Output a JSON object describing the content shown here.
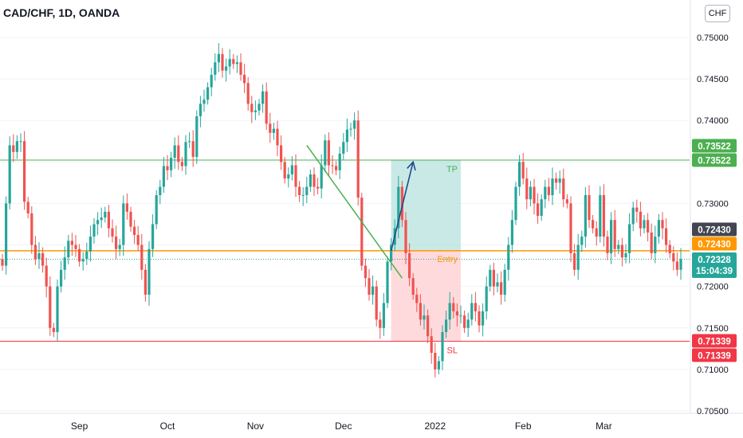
{
  "header": {
    "title": "CAD/CHF, 1D, OANDA",
    "currency": "CHF"
  },
  "colors": {
    "up": "#26a69a",
    "down": "#ef5350",
    "tp_line": "#4caf50",
    "sl_line": "#f23645",
    "entry_line": "#ff9800",
    "profit_zone": "#b2dfdb",
    "loss_zone": "#ffcdd2",
    "trend_line": "#4caf50",
    "arrow": "#1e4a8c",
    "last_price": "#26a69a",
    "dark_label": "#434651"
  },
  "chart_data": {
    "type": "candlestick",
    "symbol": "CAD/CHF",
    "timeframe": "1D",
    "source": "OANDA",
    "ylim": [
      0.705,
      0.752
    ],
    "y_ticks": [
      "0.75000",
      "0.74500",
      "0.74000",
      "0.73500",
      "0.73000",
      "0.72500",
      "0.72000",
      "0.71500",
      "0.71000",
      "0.70500"
    ],
    "x_ticks": [
      "Sep",
      "Oct",
      "Nov",
      "Dec",
      "2022",
      "Feb",
      "Mar"
    ],
    "levels": {
      "tp": {
        "label": "TP",
        "value": 0.73522,
        "price_text": "0.73522",
        "price_text2": "0.73522"
      },
      "sl": {
        "label": "SL",
        "value": 0.71339,
        "price_text": "0.71339",
        "price_text2": "0.71339"
      },
      "entry": {
        "label": "Entry",
        "value": 0.7243,
        "price_text": "0.72430"
      },
      "extra": {
        "value": 0.7243,
        "price_text": "0.72430"
      },
      "last": {
        "value": 0.72328,
        "price_text": "0.72328",
        "countdown": "15:04:39"
      }
    },
    "trend_line": {
      "start": {
        "day": 83,
        "price": 0.737
      },
      "end": {
        "day": 109,
        "price": 0.721
      }
    },
    "arrow": {
      "start": {
        "day": 106,
        "price": 0.7243
      },
      "end": {
        "day": 112,
        "price": 0.735
      }
    },
    "zones": {
      "start_day": 106,
      "end_day": 125
    },
    "closes": [
      0.7225,
      0.73,
      0.737,
      0.7362,
      0.7375,
      0.7375,
      0.7302,
      0.7288,
      0.725,
      0.7233,
      0.724,
      0.7225,
      0.72,
      0.715,
      0.7145,
      0.72,
      0.722,
      0.7235,
      0.7255,
      0.725,
      0.7245,
      0.723,
      0.7233,
      0.7242,
      0.726,
      0.7275,
      0.728,
      0.7283,
      0.729,
      0.727,
      0.726,
      0.7245,
      0.725,
      0.73,
      0.729,
      0.7272,
      0.7262,
      0.725,
      0.722,
      0.719,
      0.7245,
      0.7275,
      0.731,
      0.732,
      0.7345,
      0.734,
      0.7355,
      0.737,
      0.735,
      0.7345,
      0.7374,
      0.7375,
      0.7356,
      0.7405,
      0.742,
      0.7425,
      0.744,
      0.7455,
      0.747,
      0.748,
      0.746,
      0.7465,
      0.7474,
      0.7468,
      0.747,
      0.7455,
      0.7445,
      0.742,
      0.741,
      0.7412,
      0.742,
      0.7435,
      0.7396,
      0.7385,
      0.739,
      0.737,
      0.735,
      0.733,
      0.7335,
      0.7346,
      0.732,
      0.731,
      0.731,
      0.732,
      0.7335,
      0.732,
      0.7318,
      0.7346,
      0.7376,
      0.7346,
      0.7345,
      0.734,
      0.736,
      0.7374,
      0.7389,
      0.739,
      0.74,
      0.7307,
      0.7225,
      0.721,
      0.719,
      0.72,
      0.716,
      0.715,
      0.718,
      0.723,
      0.725,
      0.727,
      0.732,
      0.728,
      0.724,
      0.721,
      0.719,
      0.718,
      0.716,
      0.7165,
      0.714,
      0.712,
      0.71,
      0.711,
      0.7145,
      0.716,
      0.718,
      0.717,
      0.7165,
      0.7165,
      0.715,
      0.716,
      0.718,
      0.717,
      0.7153,
      0.717,
      0.72,
      0.722,
      0.72,
      0.7205,
      0.719,
      0.722,
      0.725,
      0.728,
      0.732,
      0.735,
      0.733,
      0.7305,
      0.732,
      0.73,
      0.7285,
      0.7305,
      0.732,
      0.731,
      0.733,
      0.7325,
      0.733,
      0.7305,
      0.73,
      0.724,
      0.722,
      0.725,
      0.726,
      0.731,
      0.728,
      0.727,
      0.726,
      0.731,
      0.726,
      0.724,
      0.728,
      0.7245,
      0.725,
      0.7235,
      0.724,
      0.7275,
      0.7295,
      0.729,
      0.727,
      0.728,
      0.7265,
      0.724,
      0.726,
      0.728,
      0.727,
      0.725,
      0.724,
      0.723,
      0.722,
      0.7233
    ]
  }
}
